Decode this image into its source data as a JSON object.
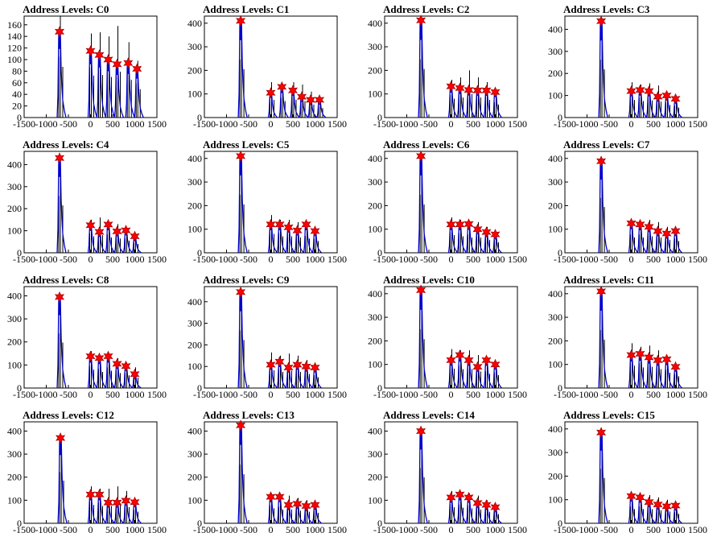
{
  "chart_data": [
    {
      "type": "line",
      "title": "Address Levels: C0",
      "xlim": [
        -1500,
        1500
      ],
      "ylim": [
        0,
        175
      ],
      "xticks": [
        "-1500",
        "-1000",
        "-500",
        "0",
        "500",
        "1000",
        "1500"
      ],
      "yticks": [
        "0",
        "20",
        "40",
        "60",
        "80",
        "100",
        "120",
        "140",
        "160"
      ],
      "line_color": "#0000cc",
      "marker_color": "#ff0000",
      "peaks": [
        {
          "x": -700,
          "y": 148,
          "tail": 175
        },
        {
          "x": 0,
          "y": 115,
          "tail": 145
        },
        {
          "x": 200,
          "y": 108,
          "tail": 147
        },
        {
          "x": 400,
          "y": 100,
          "tail": 140
        },
        {
          "x": 600,
          "y": 92,
          "tail": 158
        },
        {
          "x": 850,
          "y": 94,
          "tail": 130
        },
        {
          "x": 1050,
          "y": 84,
          "tail": 98
        }
      ]
    },
    {
      "type": "line",
      "title": "Address Levels: C1",
      "xlim": [
        -1500,
        1500
      ],
      "ylim": [
        0,
        430
      ],
      "xticks": [
        "-1500",
        "-1000",
        "-500",
        "0",
        "500",
        "1000",
        "1500"
      ],
      "yticks": [
        "0",
        "100",
        "200",
        "300",
        "400"
      ],
      "line_color": "#0000cc",
      "marker_color": "#ff0000",
      "peaks": [
        {
          "x": -680,
          "y": 410,
          "tail": 410
        },
        {
          "x": 0,
          "y": 105,
          "tail": 150
        },
        {
          "x": 250,
          "y": 130,
          "tail": 140
        },
        {
          "x": 500,
          "y": 115,
          "tail": 150
        },
        {
          "x": 700,
          "y": 88,
          "tail": 140
        },
        {
          "x": 900,
          "y": 75,
          "tail": 110
        },
        {
          "x": 1100,
          "y": 75,
          "tail": 80
        }
      ]
    },
    {
      "type": "line",
      "title": "Address Levels: C2",
      "xlim": [
        -1500,
        1500
      ],
      "ylim": [
        0,
        430
      ],
      "xticks": [
        "-1500",
        "-1000",
        "-500",
        "0",
        "500",
        "1000",
        "1500"
      ],
      "yticks": [
        "0",
        "100",
        "200",
        "300",
        "400"
      ],
      "line_color": "#0000cc",
      "marker_color": "#ff0000",
      "peaks": [
        {
          "x": -680,
          "y": 412,
          "tail": 412
        },
        {
          "x": 0,
          "y": 132,
          "tail": 160
        },
        {
          "x": 200,
          "y": 125,
          "tail": 170
        },
        {
          "x": 400,
          "y": 117,
          "tail": 200
        },
        {
          "x": 600,
          "y": 115,
          "tail": 170
        },
        {
          "x": 800,
          "y": 115,
          "tail": 150
        },
        {
          "x": 1000,
          "y": 108,
          "tail": 110
        }
      ]
    },
    {
      "type": "line",
      "title": "Address Levels: C3",
      "xlim": [
        -1500,
        1500
      ],
      "ylim": [
        0,
        460
      ],
      "xticks": [
        "-1500",
        "-1000",
        "-500",
        "0",
        "500",
        "1000",
        "1500"
      ],
      "yticks": [
        "0",
        "100",
        "200",
        "300",
        "400"
      ],
      "line_color": "#0000cc",
      "marker_color": "#ff0000",
      "peaks": [
        {
          "x": -680,
          "y": 437,
          "tail": 437
        },
        {
          "x": 0,
          "y": 120,
          "tail": 160
        },
        {
          "x": 200,
          "y": 125,
          "tail": 150
        },
        {
          "x": 400,
          "y": 120,
          "tail": 155
        },
        {
          "x": 600,
          "y": 95,
          "tail": 145
        },
        {
          "x": 800,
          "y": 100,
          "tail": 115
        },
        {
          "x": 1000,
          "y": 85,
          "tail": 90
        }
      ]
    },
    {
      "type": "line",
      "title": "Address Levels: C4",
      "xlim": [
        -1500,
        1500
      ],
      "ylim": [
        0,
        460
      ],
      "xticks": [
        "-1500",
        "-1000",
        "-500",
        "0",
        "500",
        "1000",
        "1500"
      ],
      "yticks": [
        "0",
        "100",
        "200",
        "300",
        "400"
      ],
      "line_color": "#0000cc",
      "marker_color": "#ff0000",
      "peaks": [
        {
          "x": -700,
          "y": 430,
          "tail": 430
        },
        {
          "x": 0,
          "y": 125,
          "tail": 150
        },
        {
          "x": 200,
          "y": 95,
          "tail": 160
        },
        {
          "x": 400,
          "y": 128,
          "tail": 140
        },
        {
          "x": 600,
          "y": 97,
          "tail": 130
        },
        {
          "x": 800,
          "y": 102,
          "tail": 110
        },
        {
          "x": 1000,
          "y": 75,
          "tail": 80
        }
      ]
    },
    {
      "type": "line",
      "title": "Address Levels: C5",
      "xlim": [
        -1500,
        1500
      ],
      "ylim": [
        0,
        430
      ],
      "xticks": [
        "-1500",
        "-1000",
        "-500",
        "0",
        "500",
        "1000",
        "1500"
      ],
      "yticks": [
        "0",
        "100",
        "200",
        "300",
        "400"
      ],
      "line_color": "#0000cc",
      "marker_color": "#ff0000",
      "peaks": [
        {
          "x": -680,
          "y": 410,
          "tail": 410
        },
        {
          "x": 0,
          "y": 120,
          "tail": 160
        },
        {
          "x": 200,
          "y": 120,
          "tail": 140
        },
        {
          "x": 400,
          "y": 108,
          "tail": 140
        },
        {
          "x": 600,
          "y": 95,
          "tail": 130
        },
        {
          "x": 800,
          "y": 120,
          "tail": 120
        },
        {
          "x": 1000,
          "y": 92,
          "tail": 100
        }
      ]
    },
    {
      "type": "line",
      "title": "Address Levels: C6",
      "xlim": [
        -1500,
        1500
      ],
      "ylim": [
        0,
        430
      ],
      "xticks": [
        "-1500",
        "-1000",
        "-500",
        "0",
        "500",
        "1000",
        "1500"
      ],
      "yticks": [
        "0",
        "100",
        "200",
        "300",
        "400"
      ],
      "line_color": "#0000cc",
      "marker_color": "#ff0000",
      "peaks": [
        {
          "x": -680,
          "y": 410,
          "tail": 410
        },
        {
          "x": 0,
          "y": 120,
          "tail": 150
        },
        {
          "x": 200,
          "y": 120,
          "tail": 140
        },
        {
          "x": 400,
          "y": 122,
          "tail": 130
        },
        {
          "x": 600,
          "y": 100,
          "tail": 130
        },
        {
          "x": 800,
          "y": 88,
          "tail": 110
        },
        {
          "x": 1000,
          "y": 78,
          "tail": 90
        }
      ]
    },
    {
      "type": "line",
      "title": "Address Levels: C7",
      "xlim": [
        -1500,
        1500
      ],
      "ylim": [
        0,
        430
      ],
      "xticks": [
        "-1500",
        "-1000",
        "-500",
        "0",
        "500",
        "1000",
        "1500"
      ],
      "yticks": [
        "0",
        "100",
        "200",
        "300",
        "400"
      ],
      "line_color": "#0000cc",
      "marker_color": "#ff0000",
      "peaks": [
        {
          "x": -680,
          "y": 388,
          "tail": 388
        },
        {
          "x": 0,
          "y": 125,
          "tail": 130
        },
        {
          "x": 200,
          "y": 120,
          "tail": 130
        },
        {
          "x": 400,
          "y": 110,
          "tail": 140
        },
        {
          "x": 600,
          "y": 92,
          "tail": 130
        },
        {
          "x": 800,
          "y": 82,
          "tail": 110
        },
        {
          "x": 1000,
          "y": 92,
          "tail": 100
        }
      ]
    },
    {
      "type": "line",
      "title": "Address Levels: C8",
      "xlim": [
        -1500,
        1500
      ],
      "ylim": [
        0,
        440
      ],
      "xticks": [
        "-1500",
        "-1000",
        "-500",
        "0",
        "500",
        "1000",
        "1500"
      ],
      "yticks": [
        "0",
        "100",
        "200",
        "300",
        "400"
      ],
      "line_color": "#0000cc",
      "marker_color": "#ff0000",
      "peaks": [
        {
          "x": -700,
          "y": 395,
          "tail": 395
        },
        {
          "x": 0,
          "y": 138,
          "tail": 160
        },
        {
          "x": 200,
          "y": 130,
          "tail": 140
        },
        {
          "x": 400,
          "y": 138,
          "tail": 150
        },
        {
          "x": 600,
          "y": 105,
          "tail": 130
        },
        {
          "x": 800,
          "y": 95,
          "tail": 110
        },
        {
          "x": 1000,
          "y": 60,
          "tail": 90
        }
      ]
    },
    {
      "type": "line",
      "title": "Address Levels: C9",
      "xlim": [
        -1500,
        1500
      ],
      "ylim": [
        0,
        470
      ],
      "xticks": [
        "-1500",
        "-1000",
        "-500",
        "0",
        "500",
        "1000",
        "1500"
      ],
      "yticks": [
        "0",
        "100",
        "200",
        "300",
        "400"
      ],
      "line_color": "#0000cc",
      "marker_color": "#ff0000",
      "peaks": [
        {
          "x": -680,
          "y": 445,
          "tail": 445
        },
        {
          "x": 0,
          "y": 108,
          "tail": 165
        },
        {
          "x": 200,
          "y": 122,
          "tail": 150
        },
        {
          "x": 400,
          "y": 95,
          "tail": 160
        },
        {
          "x": 600,
          "y": 108,
          "tail": 150
        },
        {
          "x": 800,
          "y": 100,
          "tail": 130
        },
        {
          "x": 1000,
          "y": 95,
          "tail": 100
        }
      ]
    },
    {
      "type": "line",
      "title": "Address Levels: C10",
      "xlim": [
        -1500,
        1500
      ],
      "ylim": [
        0,
        430
      ],
      "xticks": [
        "-1500",
        "-1000",
        "-500",
        "0",
        "500",
        "1000",
        "1500"
      ],
      "yticks": [
        "0",
        "100",
        "200",
        "300",
        "400"
      ],
      "line_color": "#0000cc",
      "marker_color": "#ff0000",
      "peaks": [
        {
          "x": -680,
          "y": 415,
          "tail": 415
        },
        {
          "x": 0,
          "y": 118,
          "tail": 165
        },
        {
          "x": 200,
          "y": 140,
          "tail": 160
        },
        {
          "x": 400,
          "y": 118,
          "tail": 160
        },
        {
          "x": 600,
          "y": 90,
          "tail": 140
        },
        {
          "x": 800,
          "y": 118,
          "tail": 120
        },
        {
          "x": 1000,
          "y": 100,
          "tail": 110
        }
      ]
    },
    {
      "type": "line",
      "title": "Address Levels: C11",
      "xlim": [
        -1500,
        1500
      ],
      "ylim": [
        0,
        430
      ],
      "xticks": [
        "-1500",
        "-1000",
        "-500",
        "0",
        "500",
        "1000",
        "1500"
      ],
      "yticks": [
        "0",
        "100",
        "200",
        "300",
        "400"
      ],
      "line_color": "#0000cc",
      "marker_color": "#ff0000",
      "peaks": [
        {
          "x": -680,
          "y": 410,
          "tail": 410
        },
        {
          "x": 0,
          "y": 140,
          "tail": 190
        },
        {
          "x": 200,
          "y": 145,
          "tail": 175
        },
        {
          "x": 400,
          "y": 130,
          "tail": 180
        },
        {
          "x": 600,
          "y": 118,
          "tail": 160
        },
        {
          "x": 800,
          "y": 122,
          "tail": 130
        },
        {
          "x": 1000,
          "y": 90,
          "tail": 100
        }
      ]
    },
    {
      "type": "line",
      "title": "Address Levels: C12",
      "xlim": [
        -1500,
        1500
      ],
      "ylim": [
        0,
        440
      ],
      "xticks": [
        "-1500",
        "-1000",
        "-500",
        "0",
        "500",
        "1000",
        "1500"
      ],
      "yticks": [
        "0",
        "100",
        "200",
        "300",
        "400"
      ],
      "line_color": "#0000cc",
      "marker_color": "#ff0000",
      "peaks": [
        {
          "x": -680,
          "y": 370,
          "tail": 370
        },
        {
          "x": 0,
          "y": 125,
          "tail": 160
        },
        {
          "x": 200,
          "y": 125,
          "tail": 150
        },
        {
          "x": 400,
          "y": 90,
          "tail": 150
        },
        {
          "x": 600,
          "y": 90,
          "tail": 160
        },
        {
          "x": 800,
          "y": 98,
          "tail": 140
        },
        {
          "x": 1000,
          "y": 92,
          "tail": 100
        }
      ]
    },
    {
      "type": "line",
      "title": "Address Levels: C13",
      "xlim": [
        -1500,
        1500
      ],
      "ylim": [
        0,
        440
      ],
      "xticks": [
        "-1500",
        "-1000",
        "-500",
        "0",
        "500",
        "1000",
        "1500"
      ],
      "yticks": [
        "0",
        "100",
        "200",
        "300",
        "400"
      ],
      "line_color": "#0000cc",
      "marker_color": "#ff0000",
      "peaks": [
        {
          "x": -680,
          "y": 425,
          "tail": 425
        },
        {
          "x": 0,
          "y": 115,
          "tail": 130
        },
        {
          "x": 200,
          "y": 115,
          "tail": 120
        },
        {
          "x": 400,
          "y": 80,
          "tail": 120
        },
        {
          "x": 600,
          "y": 85,
          "tail": 110
        },
        {
          "x": 800,
          "y": 75,
          "tail": 100
        },
        {
          "x": 1000,
          "y": 80,
          "tail": 90
        }
      ]
    },
    {
      "type": "line",
      "title": "Address Levels: C14",
      "xlim": [
        -1500,
        1500
      ],
      "ylim": [
        0,
        440
      ],
      "xticks": [
        "-1500",
        "-1000",
        "-500",
        "0",
        "500",
        "1000",
        "1500"
      ],
      "yticks": [
        "0",
        "100",
        "200",
        "300",
        "400"
      ],
      "line_color": "#0000cc",
      "marker_color": "#ff0000",
      "peaks": [
        {
          "x": -680,
          "y": 400,
          "tail": 400
        },
        {
          "x": 0,
          "y": 112,
          "tail": 140
        },
        {
          "x": 200,
          "y": 125,
          "tail": 135
        },
        {
          "x": 400,
          "y": 112,
          "tail": 130
        },
        {
          "x": 600,
          "y": 88,
          "tail": 120
        },
        {
          "x": 800,
          "y": 80,
          "tail": 100
        },
        {
          "x": 1000,
          "y": 70,
          "tail": 80
        }
      ]
    },
    {
      "type": "line",
      "title": "Address Levels: C15",
      "xlim": [
        -1500,
        1500
      ],
      "ylim": [
        0,
        430
      ],
      "xticks": [
        "-1500",
        "-1000",
        "-500",
        "0",
        "500",
        "1000",
        "1500"
      ],
      "yticks": [
        "0",
        "100",
        "200",
        "300",
        "400"
      ],
      "line_color": "#0000cc",
      "marker_color": "#ff0000",
      "peaks": [
        {
          "x": -680,
          "y": 385,
          "tail": 385
        },
        {
          "x": 0,
          "y": 115,
          "tail": 120
        },
        {
          "x": 200,
          "y": 110,
          "tail": 120
        },
        {
          "x": 400,
          "y": 90,
          "tail": 120
        },
        {
          "x": 600,
          "y": 80,
          "tail": 110
        },
        {
          "x": 800,
          "y": 72,
          "tail": 100
        },
        {
          "x": 1000,
          "y": 75,
          "tail": 80
        }
      ]
    }
  ]
}
